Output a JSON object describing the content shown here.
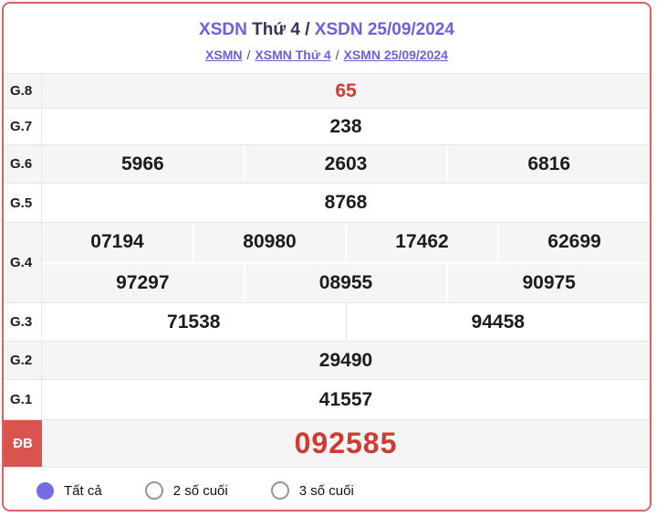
{
  "header": {
    "title": {
      "part1": "XSDN",
      "part2": " Thứ 4 / ",
      "part3": "XSDN 25/09/2024"
    },
    "breadcrumb": {
      "links": [
        "XSMN",
        "XSMN Thứ 4",
        "XSMN 25/09/2024"
      ],
      "separator": "/"
    }
  },
  "results": {
    "rows": [
      {
        "label": "G.8",
        "lines": [
          [
            "65"
          ]
        ],
        "highlight": "red"
      },
      {
        "label": "G.7",
        "lines": [
          [
            "238"
          ]
        ]
      },
      {
        "label": "G.6",
        "lines": [
          [
            "5966",
            "2603",
            "6816"
          ]
        ]
      },
      {
        "label": "G.5",
        "lines": [
          [
            "8768"
          ]
        ]
      },
      {
        "label": "G.4",
        "lines": [
          [
            "07194",
            "80980",
            "17462",
            "62699"
          ],
          [
            "97297",
            "08955",
            "90975"
          ]
        ]
      },
      {
        "label": "G.3",
        "lines": [
          [
            "71538",
            "94458"
          ]
        ]
      },
      {
        "label": "G.2",
        "lines": [
          [
            "29490"
          ]
        ]
      },
      {
        "label": "G.1",
        "lines": [
          [
            "41557"
          ]
        ]
      },
      {
        "label": "ĐB",
        "lines": [
          [
            "092585"
          ]
        ],
        "highlight": "red-large",
        "special": true
      }
    ]
  },
  "filters": {
    "options": [
      {
        "label": "Tất cả",
        "selected": true
      },
      {
        "label": "2 số cuối",
        "selected": false
      },
      {
        "label": "3 số cuối",
        "selected": false
      }
    ]
  },
  "colors": {
    "accent_purple": "#6b5fe2",
    "title_dark": "#32325c",
    "result_red": "#d6392f",
    "badge_red": "#d9534f",
    "card_border_red": "#dd5f5f",
    "row_gray": "#f5f5f6"
  }
}
